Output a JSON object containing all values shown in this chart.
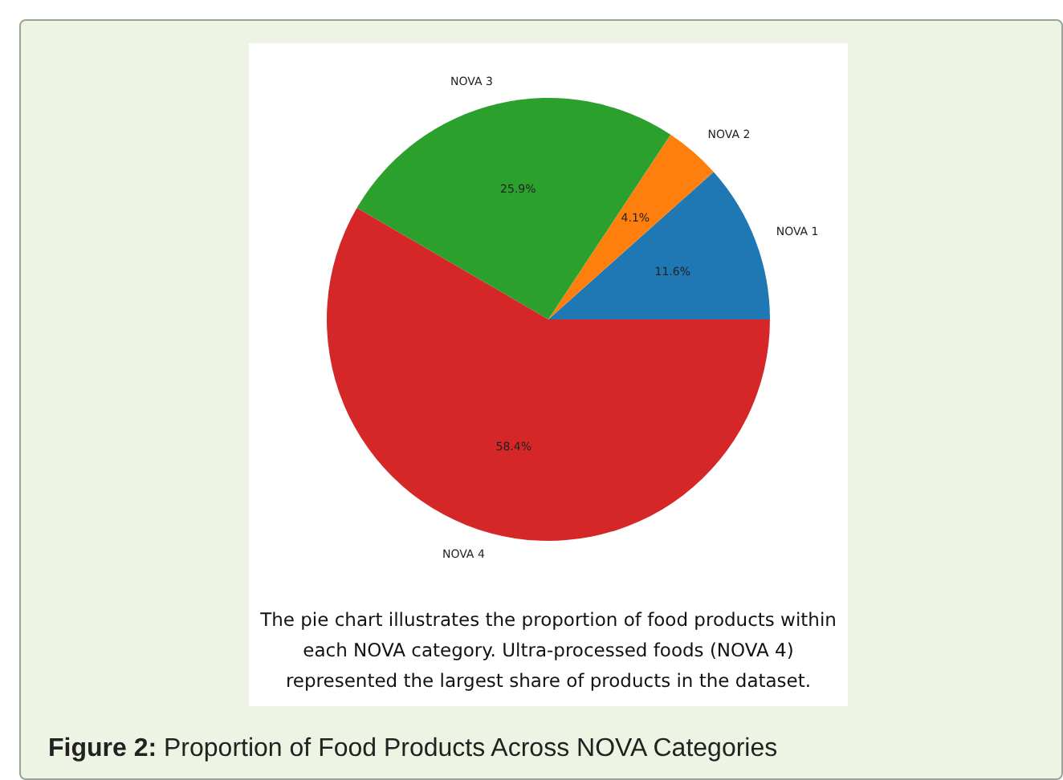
{
  "chart_data": {
    "type": "pie",
    "categories": [
      "NOVA 1",
      "NOVA 2",
      "NOVA 3",
      "NOVA 4"
    ],
    "values": [
      11.6,
      4.1,
      25.9,
      58.4
    ],
    "colors": [
      "#1f77b4",
      "#ff7f0e",
      "#2ca02c",
      "#d62728"
    ],
    "value_labels": [
      "11.6%",
      "4.1%",
      "25.9%",
      "58.4%"
    ],
    "annotations": [
      "The pie chart illustrates the proportion of food products within each NOVA category. Ultra-processed foods (NOVA 4) represented the largest share of products in the dataset.",
      "Figure 2: Proportion of Food Products Across NOVA Categories"
    ]
  }
}
